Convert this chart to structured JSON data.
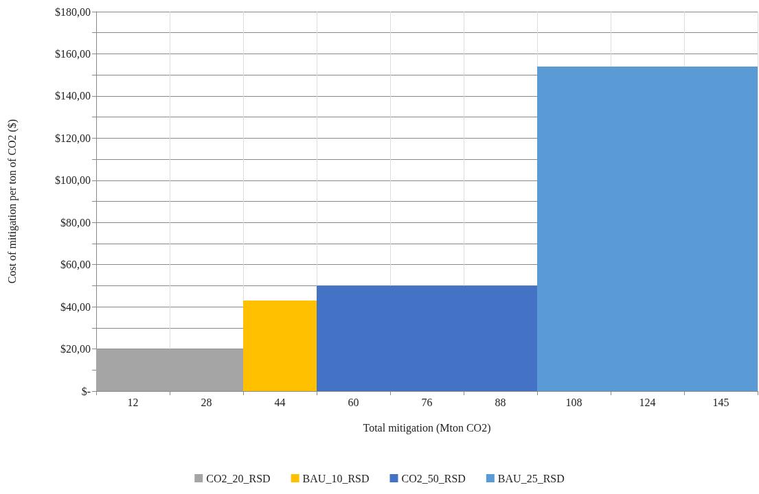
{
  "chart_data": {
    "type": "bar",
    "xlabel": "Total mitigation (Mton CO2)",
    "ylabel": "Cost of mitigation per ton of CO2 ($)",
    "categories": [
      "12",
      "28",
      "44",
      "60",
      "76",
      "88",
      "108",
      "124",
      "145"
    ],
    "series": [
      {
        "name": "CO2_20_RSD",
        "color": "#a5a5a5",
        "values": [
          20,
          20,
          null,
          null,
          null,
          null,
          null,
          null,
          null
        ]
      },
      {
        "name": "BAU_10_RSD",
        "color": "#ffc000",
        "values": [
          null,
          null,
          43,
          null,
          null,
          null,
          null,
          null,
          null
        ]
      },
      {
        "name": "CO2_50_RSD",
        "color": "#4472c4",
        "values": [
          null,
          null,
          null,
          50,
          50,
          50,
          null,
          null,
          null
        ]
      },
      {
        "name": "BAU_25_RSD",
        "color": "#5b9bd5",
        "values": [
          null,
          null,
          null,
          null,
          null,
          null,
          154,
          154,
          154
        ]
      }
    ],
    "ylim": [
      0,
      180
    ],
    "yticks": [
      {
        "value": 0,
        "label": "$-"
      },
      {
        "value": 10,
        "label": null
      },
      {
        "value": 20,
        "label": "$20,00"
      },
      {
        "value": 30,
        "label": null
      },
      {
        "value": 40,
        "label": "$40,00"
      },
      {
        "value": 50,
        "label": null
      },
      {
        "value": 60,
        "label": "$60,00"
      },
      {
        "value": 70,
        "label": null
      },
      {
        "value": 80,
        "label": "$80,00"
      },
      {
        "value": 90,
        "label": null
      },
      {
        "value": 100,
        "label": "$100,00"
      },
      {
        "value": 110,
        "label": null
      },
      {
        "value": 120,
        "label": "$120,00"
      },
      {
        "value": 130,
        "label": null
      },
      {
        "value": 140,
        "label": "$140,00"
      },
      {
        "value": 150,
        "label": null
      },
      {
        "value": 160,
        "label": "$160,00"
      },
      {
        "value": 170,
        "label": null
      },
      {
        "value": 180,
        "label": "$180,00"
      }
    ],
    "grid": true,
    "legend": "bottom"
  }
}
